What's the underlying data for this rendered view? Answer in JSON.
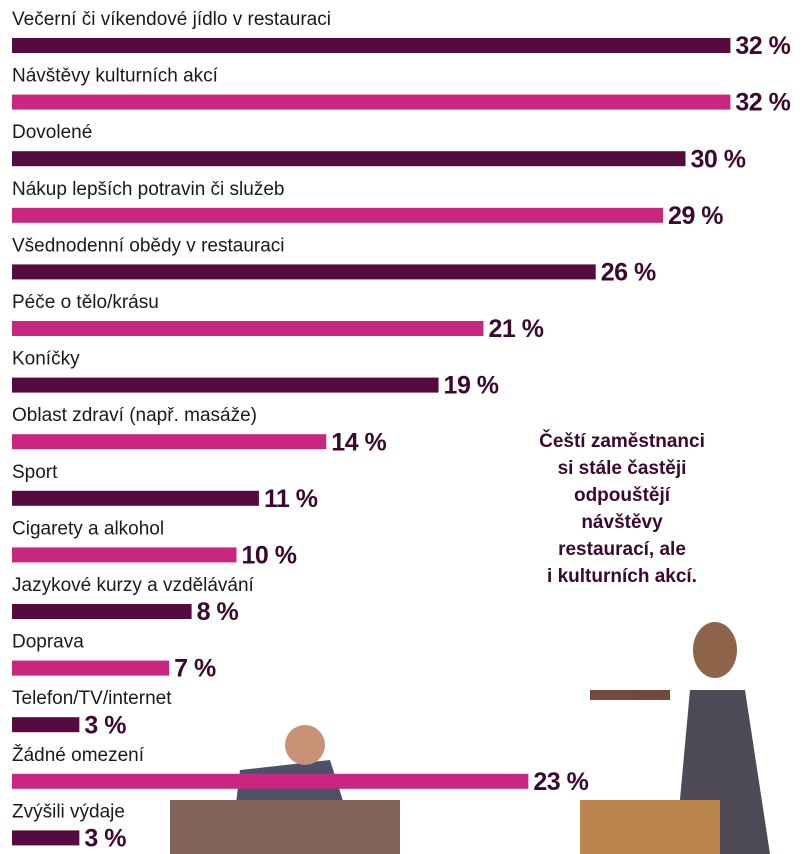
{
  "chart_data": {
    "type": "bar",
    "orientation": "horizontal",
    "categories": [
      "Večerní či víkendové jídlo v restauraci",
      "Návštěvy kulturních akcí",
      "Dovolené",
      "Nákup lepších potravin či služeb",
      "Všednodenní obědy v restauraci",
      "Péče o tělo/krásu",
      "Koníčky",
      "Oblast zdraví (např. masáže)",
      "Sport",
      "Cigarety a alkohol",
      "Jazykové kurzy a vzdělávání",
      "Doprava",
      "Telefon/TV/internet",
      "Žádné omezení",
      "Zvýšili výdaje"
    ],
    "values": [
      32,
      32,
      30,
      29,
      26,
      21,
      19,
      14,
      11,
      10,
      8,
      7,
      3,
      23,
      3
    ],
    "value_labels": [
      "32 %",
      "32 %",
      "30 %",
      "29 %",
      "26 %",
      "21 %",
      "19 %",
      "14 %",
      "11 %",
      "10 %",
      "8 %",
      "7 %",
      "3 %",
      "23 %",
      "3 %"
    ],
    "colors": [
      "#550b40",
      "#c9267f",
      "#550b40",
      "#c9267f",
      "#550b40",
      "#c9267f",
      "#550b40",
      "#c9267f",
      "#550b40",
      "#c9267f",
      "#550b40",
      "#c9267f",
      "#550b40",
      "#c9267f",
      "#550b40"
    ],
    "annotation": [
      "Čeští zaměstnanci",
      "si stále častěji",
      "odpouštějí",
      "návštěvy",
      "restaurací, ale",
      "i kulturních akcí."
    ]
  }
}
